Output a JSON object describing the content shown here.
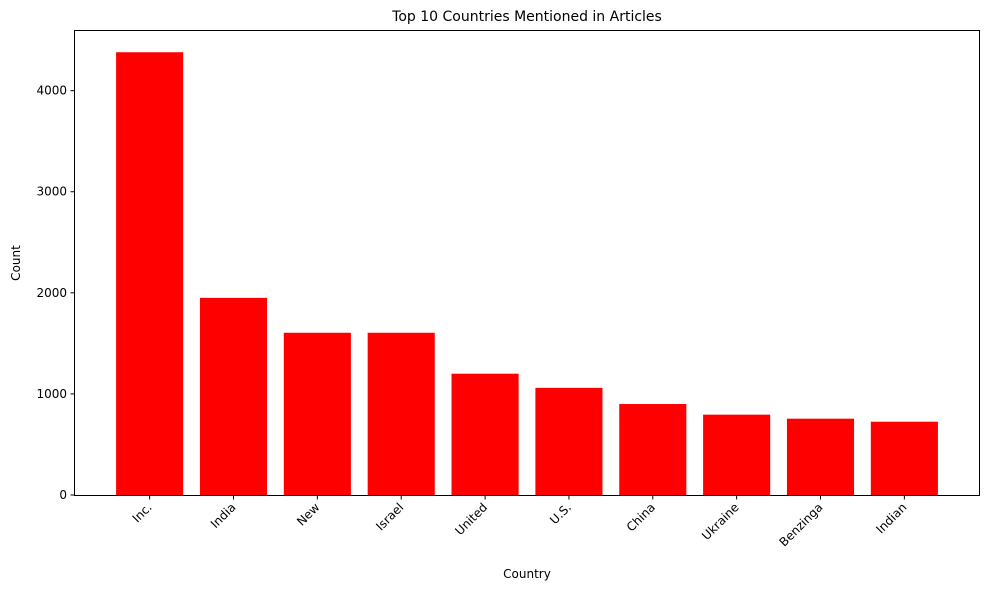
{
  "chart_data": {
    "type": "bar",
    "title": "Top 10 Countries Mentioned in Articles",
    "xlabel": "Country",
    "ylabel": "Count",
    "categories": [
      "Inc.",
      "India",
      "New",
      "Israel",
      "United",
      "U.S.",
      "China",
      "Ukraine",
      "Benzinga",
      "Indian"
    ],
    "values": [
      4380,
      1950,
      1605,
      1605,
      1200,
      1060,
      900,
      795,
      755,
      725
    ],
    "ylim": [
      0,
      4600
    ],
    "yticks": [
      0,
      1000,
      2000,
      3000,
      4000
    ],
    "grid": false,
    "bar_color": "#ff0000"
  }
}
